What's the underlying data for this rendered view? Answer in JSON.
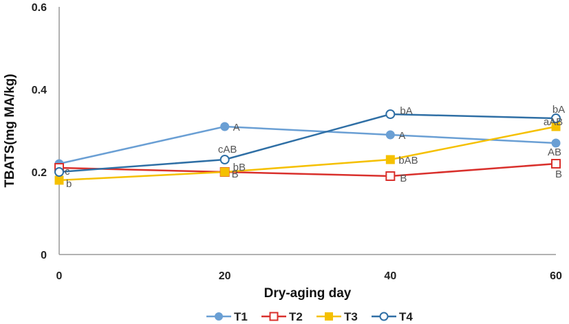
{
  "chart_data": {
    "type": "line",
    "title": "",
    "xlabel": "Dry-aging day",
    "ylabel": "TBATS(mg MA/kg)",
    "x": [
      0,
      20,
      40,
      60
    ],
    "xticks": [
      "0",
      "20",
      "40",
      "60"
    ],
    "yticks": [
      "0",
      "0.2",
      "0.4",
      "0.6"
    ],
    "xlim": [
      0,
      60
    ],
    "ylim": [
      0,
      0.6
    ],
    "grid": false,
    "legend_position": "bottom",
    "series": [
      {
        "name": "T1",
        "values": [
          0.22,
          0.31,
          0.29,
          0.27
        ],
        "labels": [
          "",
          "A",
          "A",
          "AB"
        ],
        "color": "#6a9fd4",
        "marker": "filled-circle"
      },
      {
        "name": "T2",
        "values": [
          0.21,
          0.2,
          0.19,
          0.22
        ],
        "labels": [
          "",
          "B",
          "B",
          "B"
        ],
        "color": "#d9302c",
        "marker": "open-square"
      },
      {
        "name": "T3",
        "values": [
          0.18,
          0.2,
          0.23,
          0.31
        ],
        "labels": [
          "b",
          "bB",
          "bAB",
          "aAB"
        ],
        "color": "#f5c000",
        "marker": "filled-square"
      },
      {
        "name": "T4",
        "values": [
          0.2,
          0.23,
          0.34,
          0.33
        ],
        "labels": [
          "c",
          "cAB",
          "bA",
          "bA"
        ],
        "color": "#2f6fa5",
        "marker": "open-circle"
      }
    ]
  }
}
